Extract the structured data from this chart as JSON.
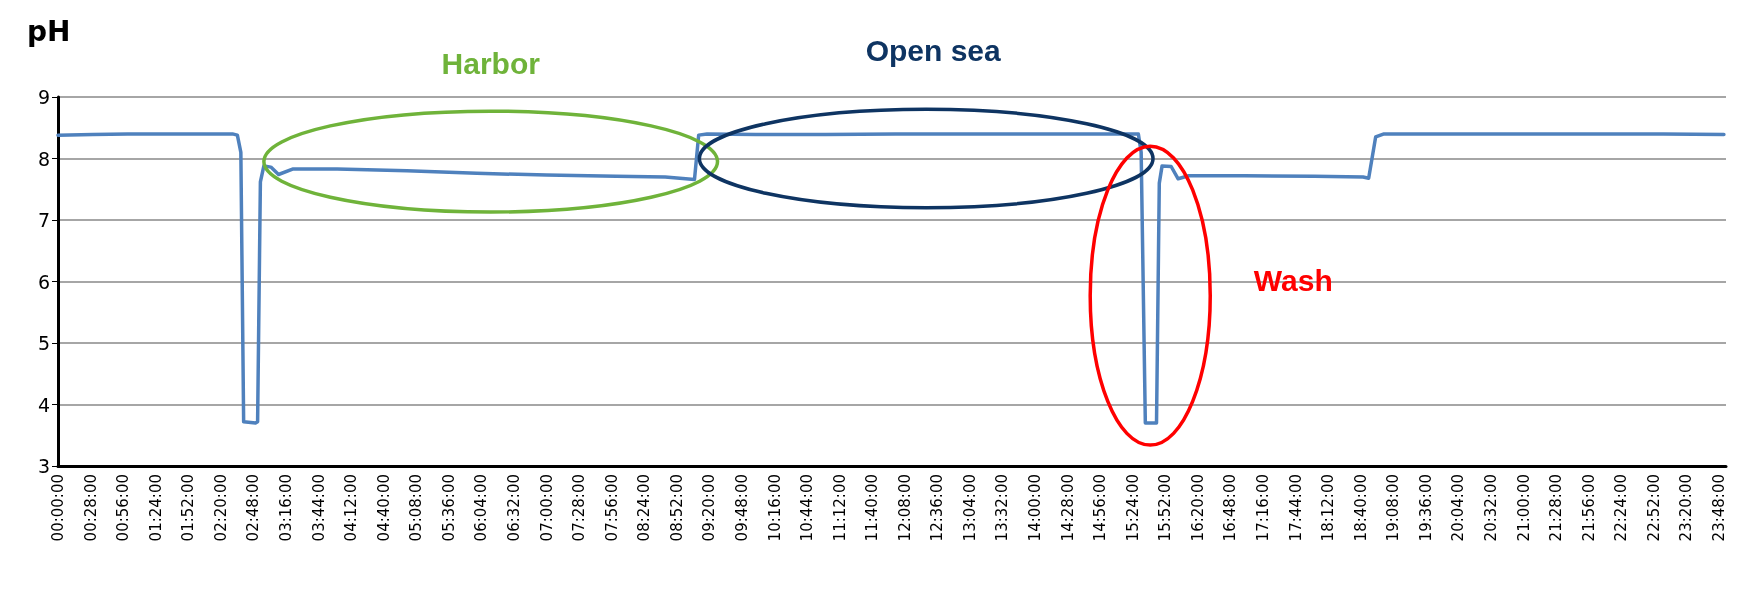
{
  "chart_data": {
    "type": "line",
    "ylabel": "pH",
    "x": [
      0,
      0.5,
      1,
      1.5,
      2,
      2.5,
      2.57,
      2.62,
      2.66,
      2.83,
      2.86,
      2.9,
      2.95,
      3.05,
      3.16,
      3.37,
      4,
      5,
      6,
      7,
      8,
      8.7,
      9.12,
      9.18,
      9.3,
      10,
      11,
      12,
      13,
      14,
      15,
      15.48,
      15.52,
      15.58,
      15.74,
      15.78,
      15.82,
      15.95,
      16.05,
      16.2,
      17,
      18,
      18.7,
      18.78,
      18.88,
      19,
      20,
      21,
      22,
      23,
      23.87
    ],
    "series": [
      {
        "color": "#4f81bd",
        "values": [
          8.38,
          8.39,
          8.4,
          8.4,
          8.4,
          8.4,
          8.38,
          8.1,
          3.72,
          3.7,
          3.72,
          7.62,
          7.88,
          7.86,
          7.74,
          7.83,
          7.83,
          7.8,
          7.76,
          7.73,
          7.71,
          7.7,
          7.66,
          8.38,
          8.4,
          8.39,
          8.39,
          8.4,
          8.4,
          8.4,
          8.4,
          8.4,
          8.1,
          3.7,
          3.7,
          7.6,
          7.88,
          7.87,
          7.67,
          7.72,
          7.72,
          7.71,
          7.7,
          7.68,
          8.35,
          8.4,
          8.4,
          8.4,
          8.4,
          8.4,
          8.39
        ]
      }
    ],
    "ylim": [
      3,
      9
    ],
    "yticks": [
      3,
      4,
      5,
      6,
      7,
      8,
      9
    ],
    "xlim": [
      0,
      23.9
    ],
    "xticks": [
      {
        "value": 0,
        "label": "00:00:00"
      },
      {
        "value": 0.4667,
        "label": "00:28:00"
      },
      {
        "value": 0.9333,
        "label": "00:56:00"
      },
      {
        "value": 1.4,
        "label": "01:24:00"
      },
      {
        "value": 1.8667,
        "label": "01:52:00"
      },
      {
        "value": 2.3333,
        "label": "02:20:00"
      },
      {
        "value": 2.8,
        "label": "02:48:00"
      },
      {
        "value": 3.2667,
        "label": "03:16:00"
      },
      {
        "value": 3.7333,
        "label": "03:44:00"
      },
      {
        "value": 4.2,
        "label": "04:12:00"
      },
      {
        "value": 4.6667,
        "label": "04:40:00"
      },
      {
        "value": 5.1333,
        "label": "05:08:00"
      },
      {
        "value": 5.6,
        "label": "05:36:00"
      },
      {
        "value": 6.0667,
        "label": "06:04:00"
      },
      {
        "value": 6.5333,
        "label": "06:32:00"
      },
      {
        "value": 7,
        "label": "07:00:00"
      },
      {
        "value": 7.4667,
        "label": "07:28:00"
      },
      {
        "value": 7.9333,
        "label": "07:56:00"
      },
      {
        "value": 8.4,
        "label": "08:24:00"
      },
      {
        "value": 8.8667,
        "label": "08:52:00"
      },
      {
        "value": 9.3333,
        "label": "09:20:00"
      },
      {
        "value": 9.8,
        "label": "09:48:00"
      },
      {
        "value": 10.2667,
        "label": "10:16:00"
      },
      {
        "value": 10.7333,
        "label": "10:44:00"
      },
      {
        "value": 11.2,
        "label": "11:12:00"
      },
      {
        "value": 11.6667,
        "label": "11:40:00"
      },
      {
        "value": 12.1333,
        "label": "12:08:00"
      },
      {
        "value": 12.6,
        "label": "12:36:00"
      },
      {
        "value": 13.0667,
        "label": "13:04:00"
      },
      {
        "value": 13.5333,
        "label": "13:32:00"
      },
      {
        "value": 14,
        "label": "14:00:00"
      },
      {
        "value": 14.4667,
        "label": "14:28:00"
      },
      {
        "value": 14.9333,
        "label": "14:56:00"
      },
      {
        "value": 15.4,
        "label": "15:24:00"
      },
      {
        "value": 15.8667,
        "label": "15:52:00"
      },
      {
        "value": 16.3333,
        "label": "16:20:00"
      },
      {
        "value": 16.8,
        "label": "16:48:00"
      },
      {
        "value": 17.2667,
        "label": "17:16:00"
      },
      {
        "value": 17.7333,
        "label": "17:44:00"
      },
      {
        "value": 18.2,
        "label": "18:12:00"
      },
      {
        "value": 18.6667,
        "label": "18:40:00"
      },
      {
        "value": 19.1333,
        "label": "19:08:00"
      },
      {
        "value": 19.6,
        "label": "19:36:00"
      },
      {
        "value": 20.0667,
        "label": "20:04:00"
      },
      {
        "value": 20.5333,
        "label": "20:32:00"
      },
      {
        "value": 21,
        "label": "21:00:00"
      },
      {
        "value": 21.4667,
        "label": "21:28:00"
      },
      {
        "value": 21.9333,
        "label": "21:56:00"
      },
      {
        "value": 22.4,
        "label": "22:24:00"
      },
      {
        "value": 22.8667,
        "label": "22:52:00"
      },
      {
        "value": 23.3333,
        "label": "23:20:00"
      },
      {
        "value": 23.8,
        "label": "23:48:00"
      }
    ],
    "grid": "y",
    "marker": "none",
    "line_style": "solid",
    "annotations": [
      "Harbor",
      "Open sea",
      "Wash"
    ]
  }
}
